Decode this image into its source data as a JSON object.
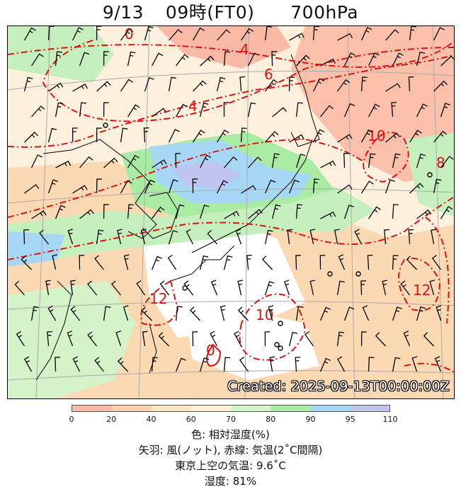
{
  "title": {
    "date": "9/13",
    "time": "09時(FT0)",
    "level": "700hPa"
  },
  "created_label": "Created: 2025-09-13T00:00:00Z",
  "temperature_contour_labels": [
    "0",
    "4",
    "6",
    "4",
    "10",
    "8",
    "12",
    "10",
    "12",
    "0"
  ],
  "colorbar": {
    "ticks": [
      "0",
      "20",
      "40",
      "60",
      "70",
      "80",
      "90",
      "95",
      "110"
    ],
    "colors": [
      "#f9b9a5",
      "#fbd2ae",
      "#fce3c1",
      "#fdf1de",
      "#d4f3c9",
      "#a9eba3",
      "#a6d8f6",
      "#c0c5f0"
    ]
  },
  "caption": {
    "line1": "色: 相対湿度(%)",
    "line2": "矢羽: 風(ノット),  赤線: 気温(2˚C間隔)",
    "line3": "東京上空の気温: 9.6˚C",
    "line4": "湿度: 81%"
  }
}
